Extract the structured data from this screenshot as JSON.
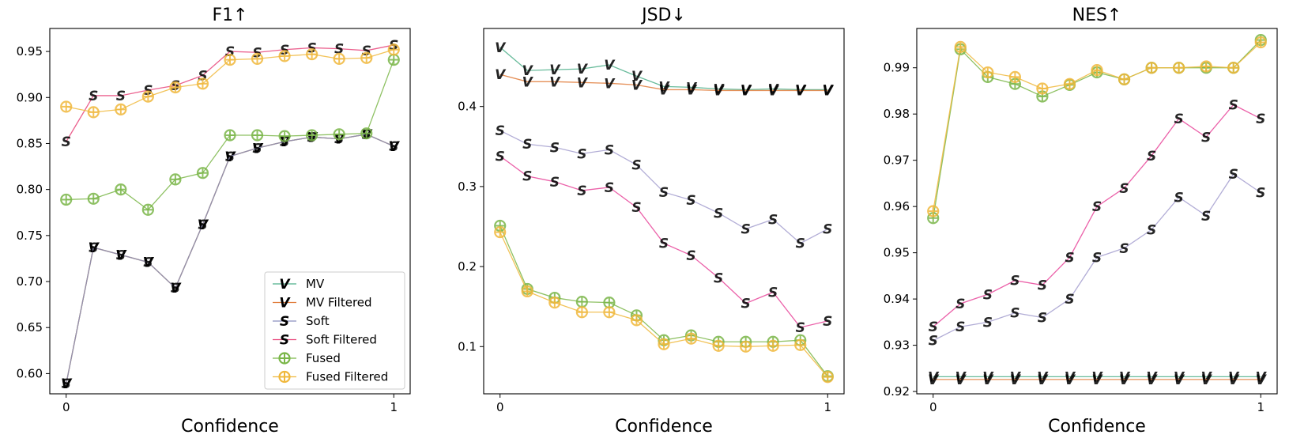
{
  "chart_data": [
    {
      "type": "line",
      "title": "F1↑",
      "xlabel": "Confidence",
      "ylabel": "",
      "x": [
        0,
        0.0833,
        0.1667,
        0.25,
        0.3333,
        0.4167,
        0.5,
        0.5833,
        0.6667,
        0.75,
        0.8333,
        0.9167,
        1
      ],
      "xticks": [
        0,
        1
      ],
      "xtick_labels": [
        "0",
        "1"
      ],
      "xlim": [
        -0.05,
        1.05
      ],
      "ylim": [
        0.578,
        0.975
      ],
      "yticks": [
        0.6,
        0.65,
        0.7,
        0.75,
        0.8,
        0.85,
        0.9,
        0.95
      ],
      "ytick_labels": [
        "0.60",
        "0.65",
        "0.70",
        "0.75",
        "0.80",
        "0.85",
        "0.90",
        "0.95"
      ],
      "legend": {
        "placement": "lower-right",
        "entries": [
          "MV",
          "MV Filtered",
          "Soft",
          "Soft Filtered",
          "Fused",
          "Fused Filtered"
        ]
      },
      "series": [
        {
          "name": "MV",
          "marker": "V",
          "color": "#4daf8a",
          "values": [
            0.589,
            0.737,
            0.729,
            0.721,
            0.693,
            0.762,
            0.836,
            0.845,
            0.852,
            0.857,
            0.855,
            0.86,
            0.847
          ]
        },
        {
          "name": "MV Filtered",
          "marker": "V",
          "color": "#e07b39",
          "values": [
            0.589,
            0.737,
            0.729,
            0.721,
            0.693,
            0.762,
            0.836,
            0.845,
            0.852,
            0.857,
            0.855,
            0.86,
            0.847
          ]
        },
        {
          "name": "Soft",
          "marker": "S",
          "color": "#8a8fbf",
          "values": [
            0.589,
            0.737,
            0.729,
            0.721,
            0.693,
            0.762,
            0.836,
            0.845,
            0.852,
            0.857,
            0.855,
            0.86,
            0.847
          ]
        },
        {
          "name": "Soft Filtered",
          "marker": "S",
          "color": "#e8457a",
          "values": [
            0.852,
            0.902,
            0.902,
            0.908,
            0.913,
            0.924,
            0.95,
            0.949,
            0.952,
            0.954,
            0.953,
            0.951,
            0.957
          ]
        },
        {
          "name": "Fused",
          "marker": "circle-plus",
          "color": "#7ab648",
          "values": [
            0.789,
            0.79,
            0.8,
            0.778,
            0.811,
            0.818,
            0.859,
            0.859,
            0.858,
            0.859,
            0.86,
            0.861,
            0.941
          ]
        },
        {
          "name": "Fused Filtered",
          "marker": "circle-plus",
          "color": "#f0b83c",
          "values": [
            0.89,
            0.884,
            0.887,
            0.901,
            0.911,
            0.915,
            0.941,
            0.942,
            0.945,
            0.947,
            0.942,
            0.943,
            0.952
          ]
        }
      ]
    },
    {
      "type": "line",
      "title": "JSD↓",
      "xlabel": "Confidence",
      "ylabel": "",
      "x": [
        0,
        0.0833,
        0.1667,
        0.25,
        0.3333,
        0.4167,
        0.5,
        0.5833,
        0.6667,
        0.75,
        0.8333,
        0.9167,
        1
      ],
      "xticks": [
        0,
        1
      ],
      "xtick_labels": [
        "0",
        "1"
      ],
      "xlim": [
        -0.05,
        1.05
      ],
      "ylim": [
        0.041,
        0.4975
      ],
      "yticks": [
        0.1,
        0.2,
        0.3,
        0.4
      ],
      "ytick_labels": [
        "0.1",
        "0.2",
        "0.3",
        "0.4"
      ],
      "series": [
        {
          "name": "MV",
          "marker": "V",
          "color": "#4daf8a",
          "values": [
            0.474,
            0.445,
            0.446,
            0.447,
            0.452,
            0.438,
            0.425,
            0.424,
            0.422,
            0.421,
            0.422,
            0.421,
            0.421
          ]
        },
        {
          "name": "MV Filtered",
          "marker": "V",
          "color": "#e07b39",
          "values": [
            0.44,
            0.431,
            0.431,
            0.43,
            0.429,
            0.427,
            0.421,
            0.421,
            0.42,
            0.42,
            0.42,
            0.42,
            0.42
          ]
        },
        {
          "name": "Soft",
          "marker": "S",
          "color": "#a59fcf",
          "values": [
            0.37,
            0.353,
            0.349,
            0.341,
            0.346,
            0.327,
            0.293,
            0.283,
            0.267,
            0.247,
            0.259,
            0.229,
            0.247
          ]
        },
        {
          "name": "Soft Filtered",
          "marker": "S",
          "color": "#e8459a",
          "values": [
            0.338,
            0.313,
            0.306,
            0.295,
            0.299,
            0.274,
            0.229,
            0.214,
            0.186,
            0.154,
            0.168,
            0.124,
            0.132
          ]
        },
        {
          "name": "Fused",
          "marker": "circle-plus",
          "color": "#7ab648",
          "values": [
            0.251,
            0.172,
            0.161,
            0.156,
            0.155,
            0.139,
            0.108,
            0.114,
            0.106,
            0.106,
            0.106,
            0.108,
            0.063
          ]
        },
        {
          "name": "Fused Filtered",
          "marker": "circle-plus",
          "color": "#f0b83c",
          "values": [
            0.243,
            0.169,
            0.155,
            0.143,
            0.143,
            0.133,
            0.103,
            0.11,
            0.101,
            0.1,
            0.101,
            0.102,
            0.062
          ]
        }
      ]
    },
    {
      "type": "line",
      "title": "NES↑",
      "xlabel": "Confidence",
      "ylabel": "",
      "x": [
        0,
        0.0833,
        0.1667,
        0.25,
        0.3333,
        0.4167,
        0.5,
        0.5833,
        0.6667,
        0.75,
        0.8333,
        0.9167,
        1
      ],
      "xticks": [
        0,
        1
      ],
      "xtick_labels": [
        "0",
        "1"
      ],
      "xlim": [
        -0.05,
        1.05
      ],
      "ylim": [
        0.9195,
        0.9985
      ],
      "yticks": [
        0.92,
        0.93,
        0.94,
        0.95,
        0.96,
        0.97,
        0.98,
        0.99
      ],
      "ytick_labels": [
        "0.92",
        "0.93",
        "0.94",
        "0.95",
        "0.96",
        "0.97",
        "0.98",
        "0.99"
      ],
      "series": [
        {
          "name": "MV",
          "marker": "V",
          "color": "#4daf8a",
          "values": [
            0.9232,
            0.9232,
            0.9232,
            0.9232,
            0.9232,
            0.9232,
            0.9232,
            0.9232,
            0.9232,
            0.9232,
            0.9232,
            0.9232,
            0.9232
          ]
        },
        {
          "name": "MV Filtered",
          "marker": "V",
          "color": "#e07b39",
          "values": [
            0.9226,
            0.9226,
            0.9226,
            0.9226,
            0.9226,
            0.9226,
            0.9226,
            0.9226,
            0.9226,
            0.9226,
            0.9226,
            0.9226,
            0.9226
          ]
        },
        {
          "name": "Soft",
          "marker": "S",
          "color": "#a59fcf",
          "values": [
            0.931,
            0.934,
            0.935,
            0.937,
            0.936,
            0.94,
            0.949,
            0.951,
            0.955,
            0.962,
            0.958,
            0.967,
            0.963
          ]
        },
        {
          "name": "Soft Filtered",
          "marker": "S",
          "color": "#e8459a",
          "values": [
            0.934,
            0.939,
            0.941,
            0.944,
            0.943,
            0.949,
            0.96,
            0.964,
            0.971,
            0.979,
            0.975,
            0.982,
            0.979
          ]
        },
        {
          "name": "Fused",
          "marker": "circle-plus",
          "color": "#7ab648",
          "values": [
            0.9575,
            0.994,
            0.988,
            0.9865,
            0.9838,
            0.9863,
            0.989,
            0.9875,
            0.99,
            0.99,
            0.99,
            0.99,
            0.996
          ]
        },
        {
          "name": "Fused Filtered",
          "marker": "circle-plus",
          "color": "#f0b83c",
          "values": [
            0.959,
            0.9945,
            0.989,
            0.988,
            0.9855,
            0.9865,
            0.9895,
            0.9875,
            0.99,
            0.99,
            0.9903,
            0.99,
            0.9955
          ]
        }
      ]
    }
  ]
}
